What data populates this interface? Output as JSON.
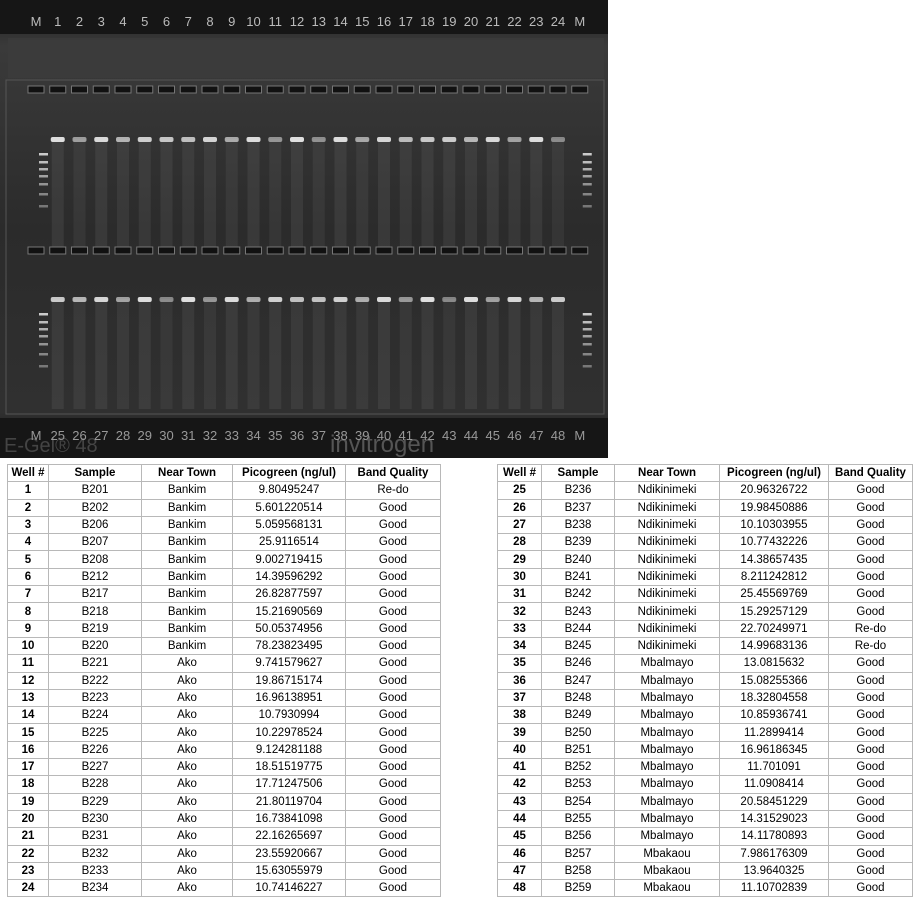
{
  "gel": {
    "top_labels": [
      "M",
      "1",
      "2",
      "3",
      "4",
      "5",
      "6",
      "7",
      "8",
      "9",
      "10",
      "11",
      "12",
      "13",
      "14",
      "15",
      "16",
      "17",
      "18",
      "19",
      "20",
      "21",
      "22",
      "23",
      "24",
      "M"
    ],
    "bottom_labels": [
      "M",
      "25",
      "26",
      "27",
      "28",
      "29",
      "30",
      "31",
      "32",
      "33",
      "34",
      "35",
      "36",
      "37",
      "38",
      "39",
      "40",
      "41",
      "42",
      "43",
      "44",
      "45",
      "46",
      "47",
      "48",
      "M"
    ],
    "brand_left": "E-Gel® 48",
    "brand_right": "invitrogen"
  },
  "tables": [
    {
      "columns": [
        "Well #",
        "Sample",
        "Near Town",
        "Picogreen (ng/ul)",
        "Band Quality"
      ],
      "rows": [
        [
          "1",
          "B201",
          "Bankim",
          "9.80495247",
          "Re-do"
        ],
        [
          "2",
          "B202",
          "Bankim",
          "5.601220514",
          "Good"
        ],
        [
          "3",
          "B206",
          "Bankim",
          "5.059568131",
          "Good"
        ],
        [
          "4",
          "B207",
          "Bankim",
          "25.9116514",
          "Good"
        ],
        [
          "5",
          "B208",
          "Bankim",
          "9.002719415",
          "Good"
        ],
        [
          "6",
          "B212",
          "Bankim",
          "14.39596292",
          "Good"
        ],
        [
          "7",
          "B217",
          "Bankim",
          "26.82877597",
          "Good"
        ],
        [
          "8",
          "B218",
          "Bankim",
          "15.21690569",
          "Good"
        ],
        [
          "9",
          "B219",
          "Bankim",
          "50.05374956",
          "Good"
        ],
        [
          "10",
          "B220",
          "Bankim",
          "78.23823495",
          "Good"
        ],
        [
          "11",
          "B221",
          "Ako",
          "9.741579627",
          "Good"
        ],
        [
          "12",
          "B222",
          "Ako",
          "19.86715174",
          "Good"
        ],
        [
          "13",
          "B223",
          "Ako",
          "16.96138951",
          "Good"
        ],
        [
          "14",
          "B224",
          "Ako",
          "10.7930994",
          "Good"
        ],
        [
          "15",
          "B225",
          "Ako",
          "10.22978524",
          "Good"
        ],
        [
          "16",
          "B226",
          "Ako",
          "9.124281188",
          "Good"
        ],
        [
          "17",
          "B227",
          "Ako",
          "18.51519775",
          "Good"
        ],
        [
          "18",
          "B228",
          "Ako",
          "17.71247506",
          "Good"
        ],
        [
          "19",
          "B229",
          "Ako",
          "21.80119704",
          "Good"
        ],
        [
          "20",
          "B230",
          "Ako",
          "16.73841098",
          "Good"
        ],
        [
          "21",
          "B231",
          "Ako",
          "22.16265697",
          "Good"
        ],
        [
          "22",
          "B232",
          "Ako",
          "23.55920667",
          "Good"
        ],
        [
          "23",
          "B233",
          "Ako",
          "15.63055979",
          "Good"
        ],
        [
          "24",
          "B234",
          "Ako",
          "10.74146227",
          "Good"
        ]
      ]
    },
    {
      "columns": [
        "Well #",
        "Sample",
        "Near Town",
        "Picogreen (ng/ul)",
        "Band Quality"
      ],
      "rows": [
        [
          "25",
          "B236",
          "Ndikinimeki",
          "20.96326722",
          "Good"
        ],
        [
          "26",
          "B237",
          "Ndikinimeki",
          "19.98450886",
          "Good"
        ],
        [
          "27",
          "B238",
          "Ndikinimeki",
          "10.10303955",
          "Good"
        ],
        [
          "28",
          "B239",
          "Ndikinimeki",
          "10.77432226",
          "Good"
        ],
        [
          "29",
          "B240",
          "Ndikinimeki",
          "14.38657435",
          "Good"
        ],
        [
          "30",
          "B241",
          "Ndikinimeki",
          "8.211242812",
          "Good"
        ],
        [
          "31",
          "B242",
          "Ndikinimeki",
          "25.45569769",
          "Good"
        ],
        [
          "32",
          "B243",
          "Ndikinimeki",
          "15.29257129",
          "Good"
        ],
        [
          "33",
          "B244",
          "Ndikinimeki",
          "22.70249971",
          "Re-do"
        ],
        [
          "34",
          "B245",
          "Ndikinimeki",
          "14.99683136",
          "Re-do"
        ],
        [
          "35",
          "B246",
          "Mbalmayo",
          "13.0815632",
          "Good"
        ],
        [
          "36",
          "B247",
          "Mbalmayo",
          "15.08255366",
          "Good"
        ],
        [
          "37",
          "B248",
          "Mbalmayo",
          "18.32804558",
          "Good"
        ],
        [
          "38",
          "B249",
          "Mbalmayo",
          "10.85936741",
          "Good"
        ],
        [
          "39",
          "B250",
          "Mbalmayo",
          "11.2899414",
          "Good"
        ],
        [
          "40",
          "B251",
          "Mbalmayo",
          "16.96186345",
          "Good"
        ],
        [
          "41",
          "B252",
          "Mbalmayo",
          "11.701091",
          "Good"
        ],
        [
          "42",
          "B253",
          "Mbalmayo",
          "11.0908414",
          "Good"
        ],
        [
          "43",
          "B254",
          "Mbalmayo",
          "20.58451229",
          "Good"
        ],
        [
          "44",
          "B255",
          "Mbalmayo",
          "14.31529023",
          "Good"
        ],
        [
          "45",
          "B256",
          "Mbalmayo",
          "14.11780893",
          "Good"
        ],
        [
          "46",
          "B257",
          "Mbakaou",
          "7.986176309",
          "Good"
        ],
        [
          "47",
          "B258",
          "Mbakaou",
          "13.9640325",
          "Good"
        ],
        [
          "48",
          "B259",
          "Mbakaou",
          "11.10702839",
          "Good"
        ]
      ]
    }
  ]
}
